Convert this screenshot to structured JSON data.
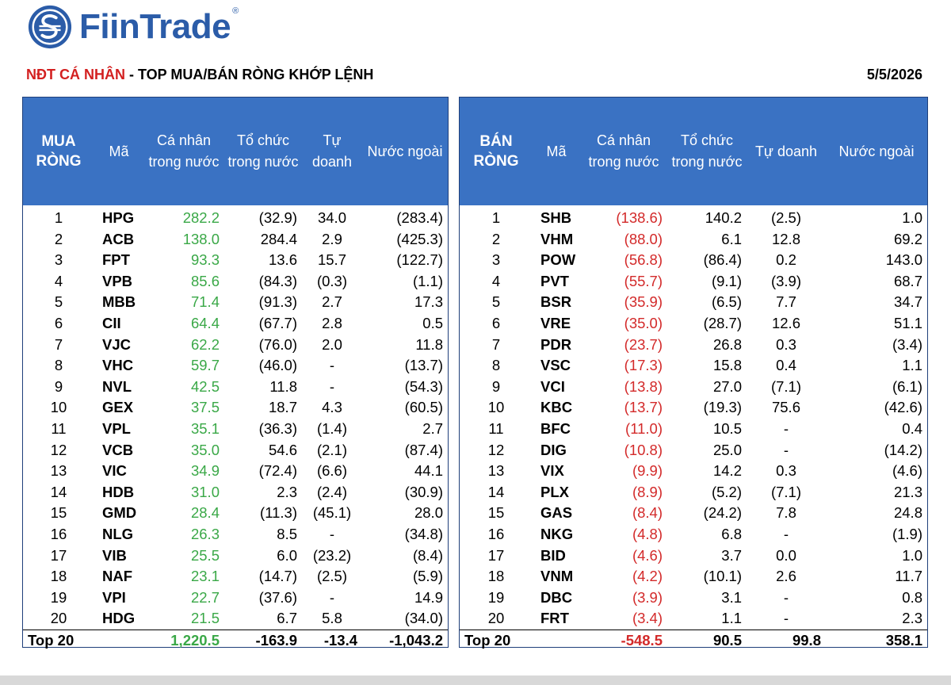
{
  "logo": {
    "brand": "FiinTrade",
    "reg": "®"
  },
  "header": {
    "title_red": "NĐT CÁ NHÂN",
    "title_rest": " - TOP MUA/BÁN RÒNG KHỚP LỆNH",
    "date": "5/5/2026"
  },
  "buy": {
    "columns": [
      "MUA RÒNG",
      "Mã",
      "Cá nhân trong nước",
      "Tổ chức trong nước",
      "Tự doanh",
      "Nước ngoài"
    ],
    "rows": [
      [
        "1",
        "HPG",
        "282.2",
        "(32.9)",
        "34.0",
        "(283.4)"
      ],
      [
        "2",
        "ACB",
        "138.0",
        "284.4",
        "2.9",
        "(425.3)"
      ],
      [
        "3",
        "FPT",
        "93.3",
        "13.6",
        "15.7",
        "(122.7)"
      ],
      [
        "4",
        "VPB",
        "85.6",
        "(84.3)",
        "(0.3)",
        "(1.1)"
      ],
      [
        "5",
        "MBB",
        "71.4",
        "(91.3)",
        "2.7",
        "17.3"
      ],
      [
        "6",
        "CII",
        "64.4",
        "(67.7)",
        "2.8",
        "0.5"
      ],
      [
        "7",
        "VJC",
        "62.2",
        "(76.0)",
        "2.0",
        "11.8"
      ],
      [
        "8",
        "VHC",
        "59.7",
        "(46.0)",
        "-",
        "(13.7)"
      ],
      [
        "9",
        "NVL",
        "42.5",
        "11.8",
        "-",
        "(54.3)"
      ],
      [
        "10",
        "GEX",
        "37.5",
        "18.7",
        "4.3",
        "(60.5)"
      ],
      [
        "11",
        "VPL",
        "35.1",
        "(36.3)",
        "(1.4)",
        "2.7"
      ],
      [
        "12",
        "VCB",
        "35.0",
        "54.6",
        "(2.1)",
        "(87.4)"
      ],
      [
        "13",
        "VIC",
        "34.9",
        "(72.4)",
        "(6.6)",
        "44.1"
      ],
      [
        "14",
        "HDB",
        "31.0",
        "2.3",
        "(2.4)",
        "(30.9)"
      ],
      [
        "15",
        "GMD",
        "28.4",
        "(11.3)",
        "(45.1)",
        "28.0"
      ],
      [
        "16",
        "NLG",
        "26.3",
        "8.5",
        "-",
        "(34.8)"
      ],
      [
        "17",
        "VIB",
        "25.5",
        "6.0",
        "(23.2)",
        "(8.4)"
      ],
      [
        "18",
        "NAF",
        "23.1",
        "(14.7)",
        "(2.5)",
        "(5.9)"
      ],
      [
        "19",
        "VPI",
        "22.7",
        "(37.6)",
        "-",
        "14.9"
      ],
      [
        "20",
        "HDG",
        "21.5",
        "6.7",
        "5.8",
        "(34.0)"
      ]
    ],
    "total": [
      "Top 20",
      "",
      "1,220.5",
      "-163.9",
      "-13.4",
      "-1,043.2"
    ]
  },
  "sell": {
    "columns": [
      "BÁN RÒNG",
      "Mã",
      "Cá nhân trong nước",
      "Tổ chức trong nước",
      "Tự doanh",
      "Nước ngoài"
    ],
    "rows": [
      [
        "1",
        "SHB",
        "(138.6)",
        "140.2",
        "(2.5)",
        "1.0"
      ],
      [
        "2",
        "VHM",
        "(88.0)",
        "6.1",
        "12.8",
        "69.2"
      ],
      [
        "3",
        "POW",
        "(56.8)",
        "(86.4)",
        "0.2",
        "143.0"
      ],
      [
        "4",
        "PVT",
        "(55.7)",
        "(9.1)",
        "(3.9)",
        "68.7"
      ],
      [
        "5",
        "BSR",
        "(35.9)",
        "(6.5)",
        "7.7",
        "34.7"
      ],
      [
        "6",
        "VRE",
        "(35.0)",
        "(28.7)",
        "12.6",
        "51.1"
      ],
      [
        "7",
        "PDR",
        "(23.7)",
        "26.8",
        "0.3",
        "(3.4)"
      ],
      [
        "8",
        "VSC",
        "(17.3)",
        "15.8",
        "0.4",
        "1.1"
      ],
      [
        "9",
        "VCI",
        "(13.8)",
        "27.0",
        "(7.1)",
        "(6.1)"
      ],
      [
        "10",
        "KBC",
        "(13.7)",
        "(19.3)",
        "75.6",
        "(42.6)"
      ],
      [
        "11",
        "BFC",
        "(11.0)",
        "10.5",
        "-",
        "0.4"
      ],
      [
        "12",
        "DIG",
        "(10.8)",
        "25.0",
        "-",
        "(14.2)"
      ],
      [
        "13",
        "VIX",
        "(9.9)",
        "14.2",
        "0.3",
        "(4.6)"
      ],
      [
        "14",
        "PLX",
        "(8.9)",
        "(5.2)",
        "(7.1)",
        "21.3"
      ],
      [
        "15",
        "GAS",
        "(8.4)",
        "(24.2)",
        "7.8",
        "24.8"
      ],
      [
        "16",
        "NKG",
        "(4.8)",
        "6.8",
        "-",
        "(1.9)"
      ],
      [
        "17",
        "BID",
        "(4.6)",
        "3.7",
        "0.0",
        "1.0"
      ],
      [
        "18",
        "VNM",
        "(4.2)",
        "(10.1)",
        "2.6",
        "11.7"
      ],
      [
        "19",
        "DBC",
        "(3.9)",
        "3.1",
        "-",
        "0.8"
      ],
      [
        "20",
        "FRT",
        "(3.4)",
        "1.1",
        "-",
        "2.3"
      ]
    ],
    "total": [
      "Top 20",
      "",
      "-548.5",
      "90.5",
      "99.8",
      "358.1"
    ]
  },
  "colors": {
    "header_blue": "#3a72c3",
    "positive": "#3aa847",
    "negative": "#d32a2a",
    "title_red": "#d32020",
    "brand_blue": "#2b5ca8"
  },
  "icons": {
    "logo": "fiintrade-logo-icon"
  }
}
